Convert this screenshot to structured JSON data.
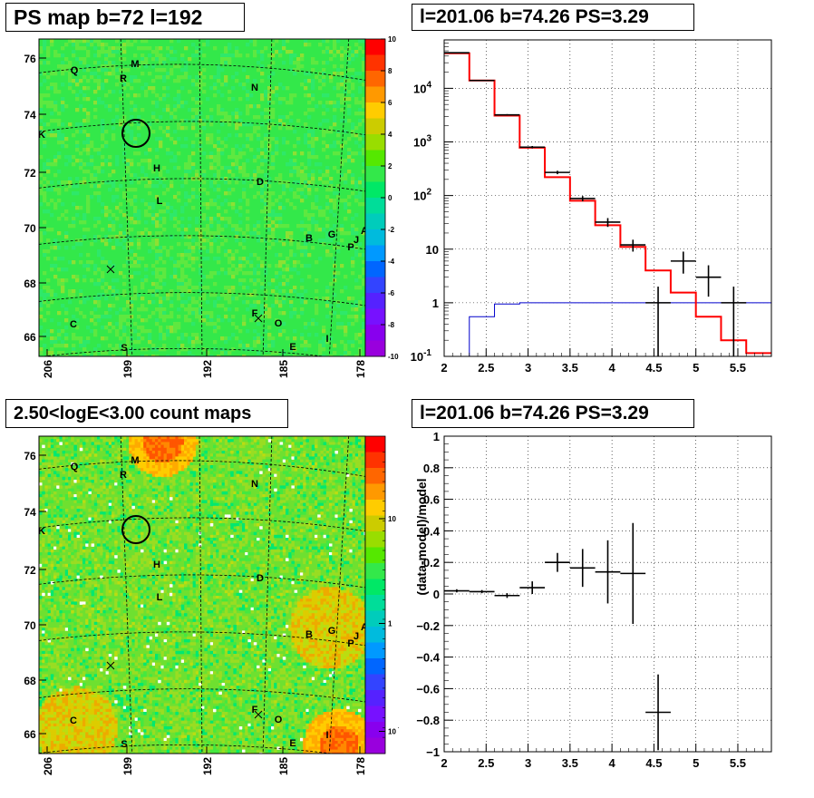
{
  "titles": {
    "ps_map": "PS map b=72 l=192",
    "spectrum": "l=201.06 b=74.26 PS=3.29",
    "count_map": "2.50<logE<3.00 count maps",
    "residual": "l=201.06 b=74.26 PS=3.29"
  },
  "colors": {
    "data": "#000000",
    "model": "#ff0000",
    "background": "#0000cc",
    "map_green": "#33e84a"
  },
  "maps": {
    "lon_ticks": [
      "206",
      "199",
      "192",
      "185",
      "178"
    ],
    "lat_ticks": [
      "76",
      "74",
      "72",
      "70",
      "68",
      "66"
    ],
    "ps_colorbar_ticks": [
      "10",
      "8",
      "6",
      "4",
      "2",
      "0",
      "-2",
      "-4",
      "-6",
      "-8",
      "-10"
    ],
    "count_colorbar_ticks": [
      "10",
      "1",
      "10",
      "-1"
    ],
    "source_labels": [
      "M",
      "Q",
      "R",
      "N",
      "K",
      "H",
      "D",
      "L",
      "B",
      "G",
      "A",
      "J",
      "P",
      "C",
      "F",
      "O",
      "I",
      "S",
      "E"
    ],
    "circle_marker": {
      "lon": 201.06,
      "lat": 74.26
    },
    "cross_markers": [
      {
        "lon": 202.0,
        "lat": 68.5
      },
      {
        "lon": 187.0,
        "lat": 66.7
      }
    ]
  },
  "chart_data": [
    {
      "type": "line",
      "title": "l=201.06 b=74.26 PS=3.29",
      "xlabel": "",
      "ylabel": "",
      "y_scale": "log",
      "xlim": [
        2,
        5.9
      ],
      "ylim": [
        0.1,
        80000
      ],
      "grid": true,
      "x_ticks": [
        "2",
        "2.5",
        "3",
        "3.5",
        "4",
        "4.5",
        "5",
        "5.5"
      ],
      "y_ticks": [
        "10^4",
        "10^3",
        "10^2",
        "10",
        "1",
        "10^-1"
      ],
      "model_edges": [
        2.0,
        2.3,
        2.6,
        2.9,
        3.2,
        3.5,
        3.8,
        4.1,
        4.4,
        4.7,
        5.0,
        5.3,
        5.6,
        5.9
      ],
      "series": [
        {
          "name": "",
          "kind": "model",
          "values": [
            45000,
            14000,
            3100,
            780,
            220,
            80,
            28,
            11,
            4,
            1.55,
            0.55,
            0.2,
            0.115
          ]
        },
        {
          "name": "",
          "kind": "background",
          "values": [
            0.1,
            0.55,
            0.95,
            1.0,
            1.0,
            1.0,
            1.0,
            1.0,
            1.0,
            1.0,
            1.0,
            1.0,
            1.0
          ]
        },
        {
          "name": "",
          "kind": "data",
          "points": [
            {
              "x": 2.15,
              "y": 46000,
              "err_lo": 500,
              "err_hi": 500
            },
            {
              "x": 2.45,
              "y": 14000,
              "err_lo": 300,
              "err_hi": 300
            },
            {
              "x": 2.75,
              "y": 3200,
              "err_lo": 100,
              "err_hi": 100
            },
            {
              "x": 3.05,
              "y": 800,
              "err_lo": 40,
              "err_hi": 40
            },
            {
              "x": 3.35,
              "y": 270,
              "err_lo": 20,
              "err_hi": 20
            },
            {
              "x": 3.65,
              "y": 88,
              "err_lo": 10,
              "err_hi": 10
            },
            {
              "x": 3.95,
              "y": 32,
              "err_lo": 6,
              "err_hi": 6
            },
            {
              "x": 4.25,
              "y": 12,
              "err_lo": 3,
              "err_hi": 3
            },
            {
              "x": 4.55,
              "y": 1.0,
              "err_lo": 0.95,
              "err_hi": 1.0
            },
            {
              "x": 4.85,
              "y": 6,
              "err_lo": 2.5,
              "err_hi": 3
            },
            {
              "x": 5.15,
              "y": 3,
              "err_lo": 1.7,
              "err_hi": 2
            },
            {
              "x": 5.45,
              "y": 1.0,
              "err_lo": 0.95,
              "err_hi": 1.0
            }
          ]
        }
      ]
    },
    {
      "type": "scatter",
      "title": "l=201.06 b=74.26 PS=3.29",
      "xlabel": "",
      "ylabel": "(data-model)/model",
      "xlim": [
        2,
        5.9
      ],
      "ylim": [
        -1,
        1
      ],
      "grid": true,
      "x_ticks": [
        "2",
        "2.5",
        "3",
        "3.5",
        "4",
        "4.5",
        "5",
        "5.5"
      ],
      "y_ticks": [
        "1",
        "0.8",
        "0.6",
        "0.4",
        "0.2",
        "0",
        "-0.2",
        "-0.4",
        "-0.6",
        "-0.8",
        "-1"
      ],
      "series": [
        {
          "name": "",
          "points": [
            {
              "x": 2.15,
              "y": 0.02,
              "err": 0.01,
              "xerr": 0.15
            },
            {
              "x": 2.45,
              "y": 0.015,
              "err": 0.01,
              "xerr": 0.15
            },
            {
              "x": 2.75,
              "y": -0.01,
              "err": 0.015,
              "xerr": 0.15
            },
            {
              "x": 3.05,
              "y": 0.04,
              "err": 0.04,
              "xerr": 0.15
            },
            {
              "x": 3.35,
              "y": 0.2,
              "err": 0.06,
              "xerr": 0.15
            },
            {
              "x": 3.65,
              "y": 0.165,
              "err": 0.12,
              "xerr": 0.15
            },
            {
              "x": 3.95,
              "y": 0.14,
              "err": 0.2,
              "xerr": 0.15
            },
            {
              "x": 4.25,
              "y": 0.13,
              "err": 0.32,
              "xerr": 0.15
            },
            {
              "x": 4.55,
              "y": -0.75,
              "err": 0.24,
              "xerr": 0.15
            }
          ]
        }
      ]
    }
  ]
}
